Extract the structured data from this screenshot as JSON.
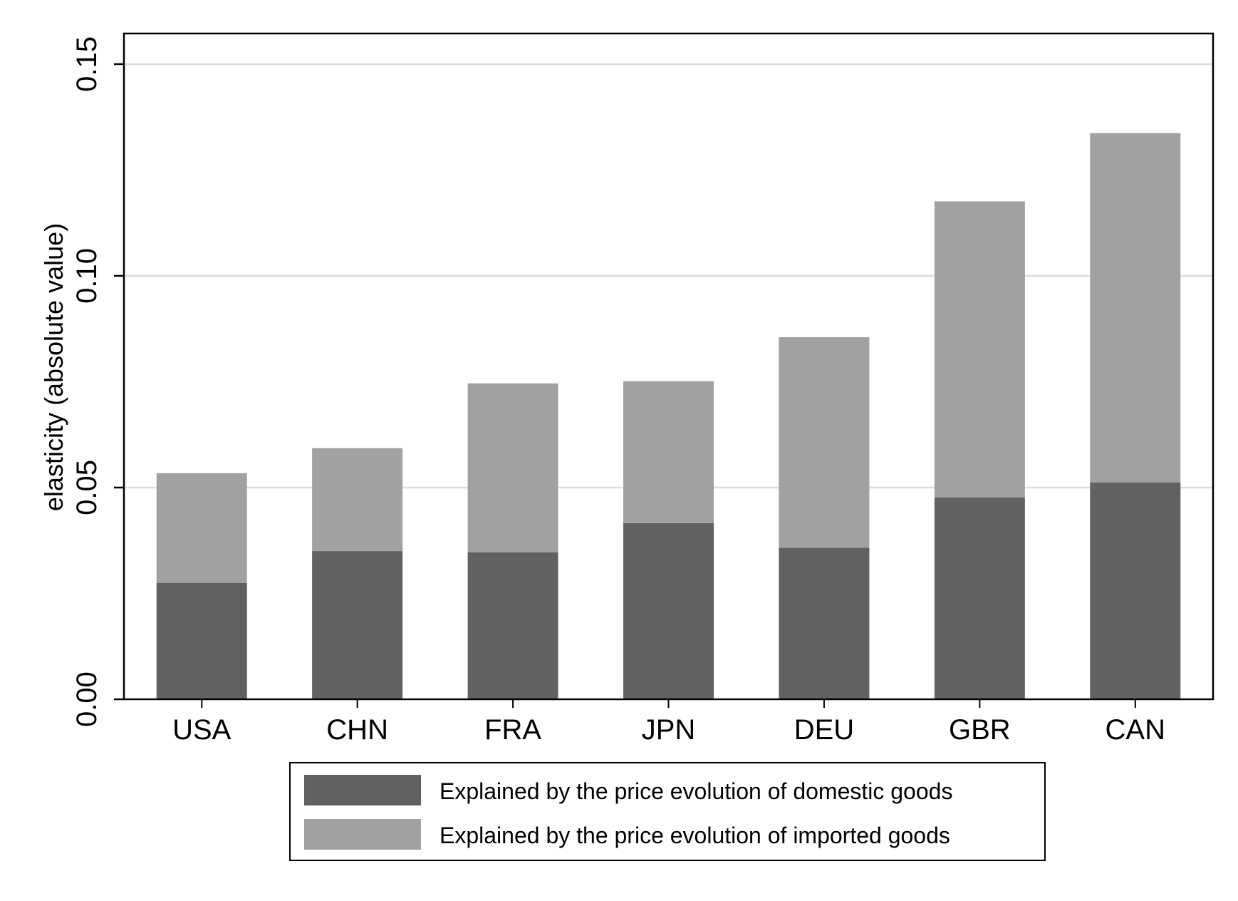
{
  "chart_data": {
    "type": "bar",
    "stacked": true,
    "categories": [
      "USA",
      "CHN",
      "FRA",
      "JPN",
      "DEU",
      "GBR",
      "CAN"
    ],
    "series": [
      {
        "name": "Explained by the price evolution of domestic goods",
        "color": "#616161",
        "values": [
          0.0275,
          0.035,
          0.0347,
          0.0416,
          0.0358,
          0.0477,
          0.0512
        ]
      },
      {
        "name": "Explained by the price evolution of imported goods",
        "color": "#a1a1a1",
        "values": [
          0.0259,
          0.0243,
          0.0399,
          0.0335,
          0.0497,
          0.0699,
          0.0825
        ]
      }
    ],
    "ylabel": "elasticity (absolute value)",
    "xlabel": "",
    "title": "",
    "ylim": [
      0,
      0.15
    ],
    "yticks": [
      "0.00",
      "0.05",
      "0.10",
      "0.15"
    ],
    "grid": true,
    "legend_position": "bottom"
  }
}
